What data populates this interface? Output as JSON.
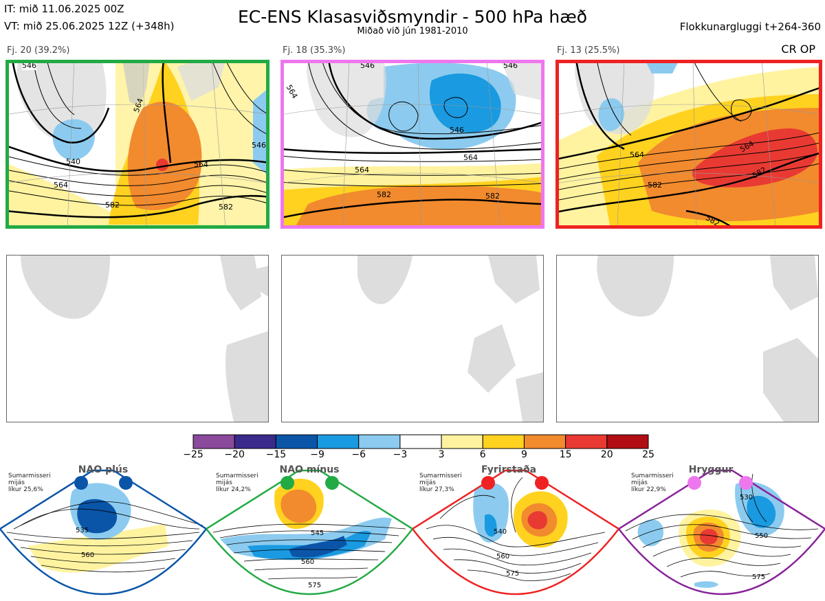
{
  "header": {
    "it": "IT: mið 11.06.2025 00Z",
    "vt": "VT: mið 25.06.2025 12Z  (+348h)",
    "title": "EC-ENS Klasasviðsmyndir - 500 hPa hæð",
    "subtitle": "Miðað við jún 1981-2010",
    "window": "Flokkunargluggi t+264-360"
  },
  "clusters": [
    {
      "label": "Fj. 20 (39.2%)",
      "border": "#22aa44",
      "contours": [
        "546",
        "540",
        "564",
        "564",
        "582",
        "582",
        "564",
        "546"
      ]
    },
    {
      "label": "Fj. 18 (35.3%)",
      "border": "#ee77ee",
      "contours": [
        "546",
        "546",
        "564",
        "546",
        "564",
        "582",
        "582",
        "564"
      ]
    },
    {
      "label": "Fj. 13 (25.5%)",
      "border": "#ee2222",
      "contours": [
        "564",
        "564",
        "582",
        "582",
        "582"
      ]
    }
  ],
  "cr_op": "CR OP",
  "colorbar": {
    "ticks": [
      "−25",
      "−20",
      "−15",
      "−9",
      "−6",
      "−3",
      "3",
      "6",
      "9",
      "15",
      "20",
      "25"
    ],
    "colors": [
      "#8b4a9c",
      "#3a2a8c",
      "#0a55a8",
      "#1a9ae0",
      "#8ccbef",
      "#ffffff",
      "#fff3a0",
      "#ffd21f",
      "#f28a2e",
      "#e83a32",
      "#b00e14"
    ]
  },
  "regimes": [
    {
      "name": "NAO plús",
      "note": [
        "Sumarmisseri",
        "mijás",
        "líkur 25,6%"
      ],
      "color": "#0a55a8",
      "contours": [
        "535",
        "560"
      ]
    },
    {
      "name": "NAO mínus",
      "note": [
        "Sumarmisseri",
        "mijás",
        "líkur 24,2%"
      ],
      "color": "#22aa44",
      "contours": [
        "545",
        "560",
        "575"
      ]
    },
    {
      "name": "Fyrirstaða",
      "note": [
        "Sumarmisseri",
        "mijás",
        "líkur 27,3%"
      ],
      "color": "#ee2222",
      "contours": [
        "540",
        "560",
        "575"
      ]
    },
    {
      "name": "Hryggur",
      "note": [
        "Sumarmisseri",
        "mijás",
        "líkur 22,9%"
      ],
      "color": "#ee77ee",
      "contours": [
        "530",
        "550",
        "575"
      ]
    }
  ]
}
